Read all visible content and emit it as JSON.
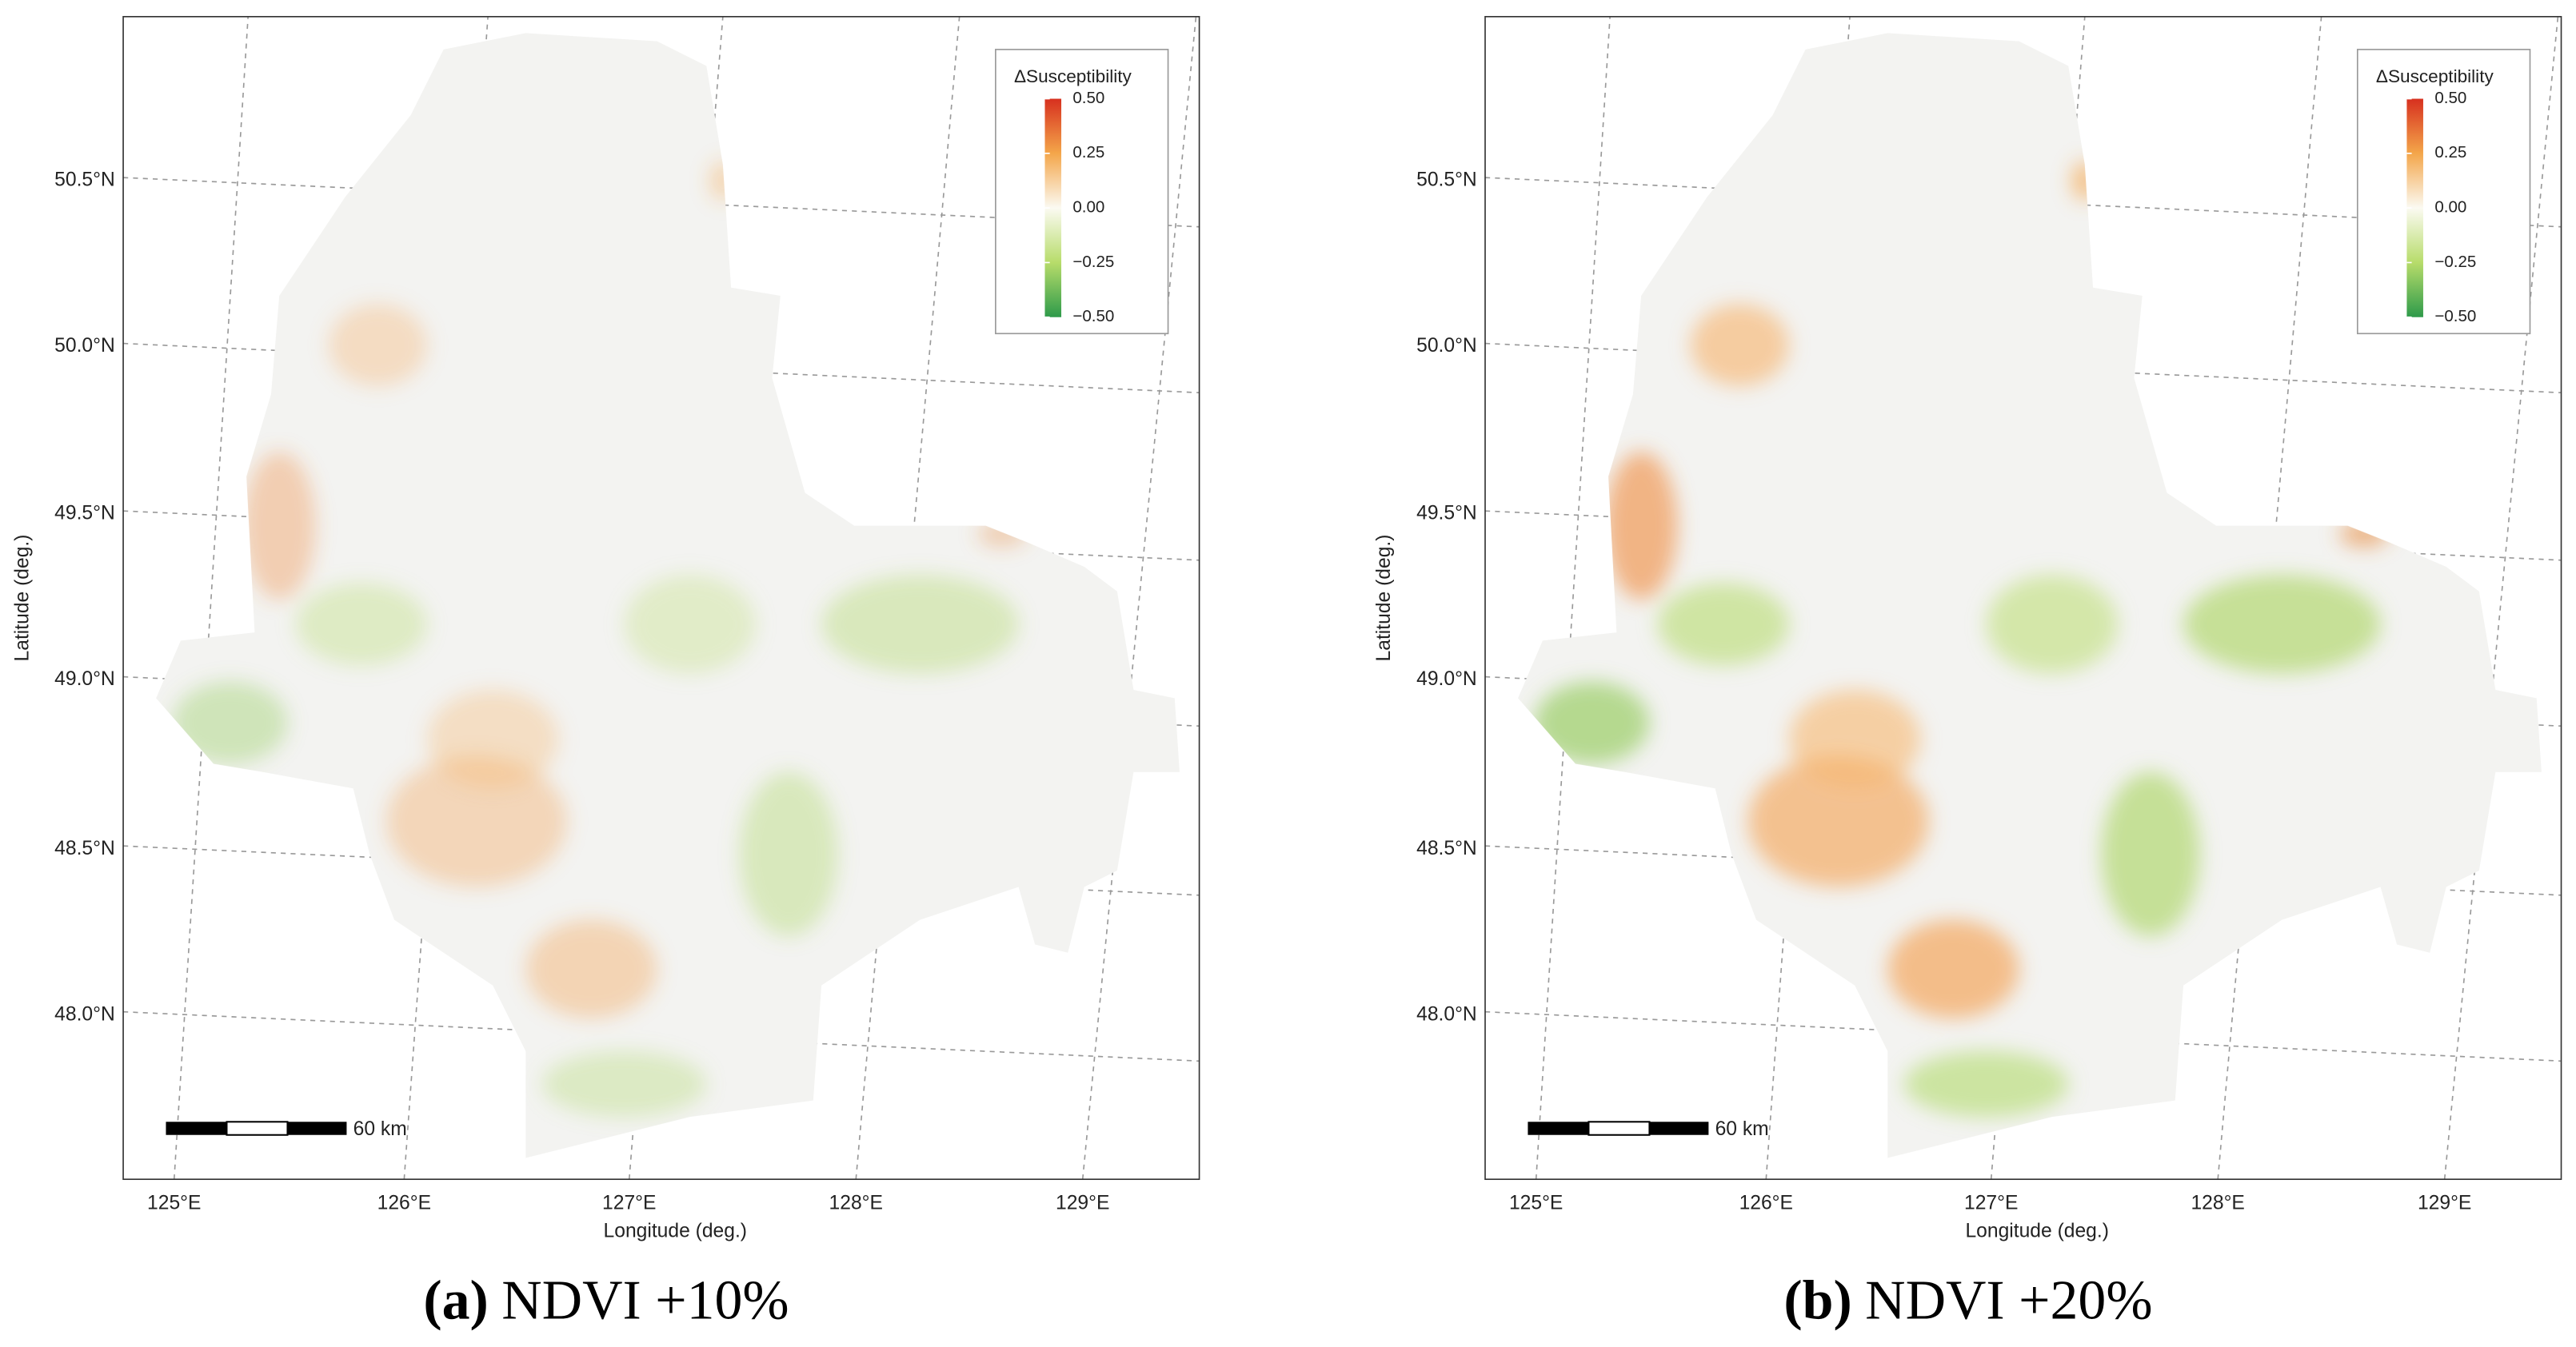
{
  "panels": [
    {
      "label": "(a)",
      "caption": "NDVI +10%",
      "lat_labels": [
        "50.5°N",
        "50.0°N",
        "49.5°N",
        "49.0°N",
        "48.5°N",
        "48.0°N"
      ],
      "lon_labels": [
        "125°E",
        "126°E",
        "127°E",
        "128°E",
        "129°E"
      ],
      "x_label": "Longitude (deg.)",
      "y_label": "Latitude (deg.)",
      "legend": {
        "title": "ΔSusceptibility",
        "ticks": [
          {
            "value": 0.5,
            "label": "0.50"
          },
          {
            "value": 0.25,
            "label": "0.25"
          },
          {
            "value": 0,
            "label": "0.00"
          },
          {
            "value": -0.25,
            "label": "−0.25"
          },
          {
            "value": -0.5,
            "label": "−0.50"
          }
        ]
      },
      "scale_bar": "60 km"
    },
    {
      "label": "(b)",
      "caption": "NDVI +20%",
      "lat_labels": [
        "50.5°N",
        "50.0°N",
        "49.5°N",
        "49.0°N",
        "48.5°N",
        "48.0°N"
      ],
      "lon_labels": [
        "125°E",
        "126°E",
        "127°E",
        "128°E",
        "129°E"
      ],
      "x_label": "Longitude (deg.)",
      "y_label": "Latitude (deg.)",
      "legend": {
        "title": "ΔSusceptibility",
        "ticks": [
          {
            "value": 0.5,
            "label": "0.50"
          },
          {
            "value": 0.25,
            "label": "0.25"
          },
          {
            "value": 0,
            "label": "0.00"
          },
          {
            "value": -0.25,
            "label": "−0.25"
          },
          {
            "value": -0.5,
            "label": "−0.50"
          }
        ]
      },
      "scale_bar": "60 km"
    }
  ]
}
